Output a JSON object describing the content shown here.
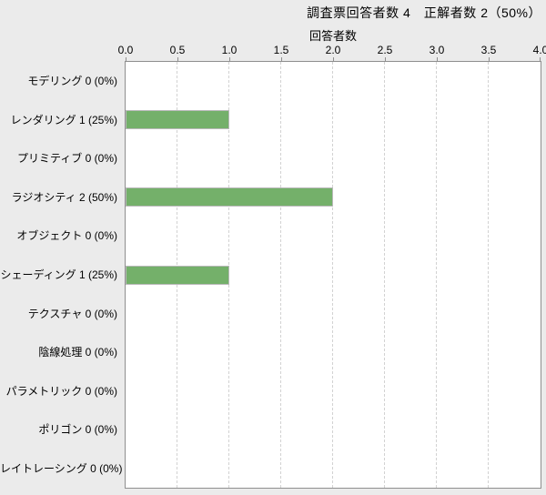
{
  "title": "調査票回答者数 4　正解者数 2（50%）",
  "chart_data": {
    "type": "bar",
    "orientation": "horizontal",
    "title": "調査票回答者数 4　正解者数 2（50%）",
    "respondents_total": 4,
    "correct_total": 2,
    "correct_percent": "50%",
    "xlabel": "回答者数",
    "xlim": [
      0.0,
      4.0
    ],
    "xticks": [
      "0.0",
      "0.5",
      "1.0",
      "1.5",
      "2.0",
      "2.5",
      "3.0",
      "3.5",
      "4.0"
    ],
    "grid": "vertical-dashed",
    "legend": "none",
    "bar_color": "#74b06a",
    "categories": [
      "モデリング",
      "レンダリング",
      "プリミティブ",
      "ラジオシティ",
      "オブジェクト",
      "シェーディング",
      "テクスチャ",
      "陰線処理",
      "パラメトリック",
      "ポリゴン",
      "レイトレーシング"
    ],
    "values": [
      0,
      1,
      0,
      2,
      0,
      1,
      0,
      0,
      0,
      0,
      0
    ],
    "percentages": [
      "0%",
      "25%",
      "0%",
      "50%",
      "0%",
      "25%",
      "0%",
      "0%",
      "0%",
      "0%",
      "0%"
    ],
    "row_labels": [
      "モデリング 0 (0%)",
      "レンダリング 1 (25%)",
      "プリミティブ 0 (0%)",
      "ラジオシティ 2 (50%)",
      "オブジェクト 0 (0%)",
      "シェーディング 1 (25%)",
      "テクスチャ 0 (0%)",
      "陰線処理 0 (0%)",
      "パラメトリック 0 (0%)",
      "ポリゴン 0 (0%)",
      "レイトレーシング 0 (0%)"
    ]
  },
  "colors": {
    "page_background": "#ebebeb",
    "plot_background": "#ffffff",
    "axis_border": "#8f8f8f",
    "gridline": "#d2d2d2",
    "bar_fill": "#74b06a",
    "bar_border": "#b9b9b9",
    "text": "#000000"
  }
}
